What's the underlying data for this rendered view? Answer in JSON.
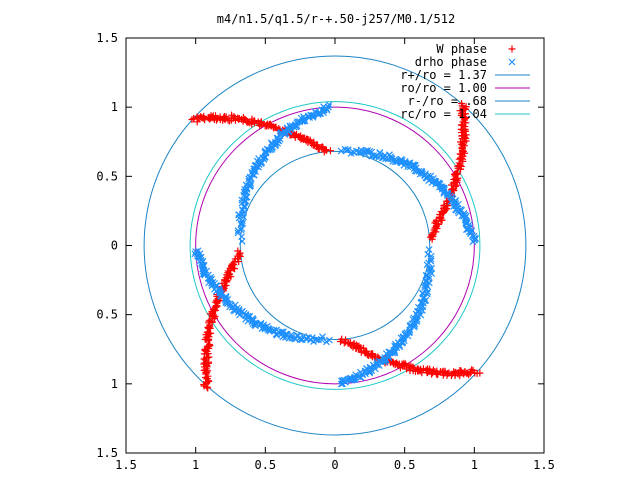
{
  "chart_data": {
    "type": "scatter",
    "title": "m4/n1.5/q1.5/r-+.50-j257/M0.1/512",
    "xlabel": "",
    "ylabel": "",
    "xlim": [
      -1.5,
      1.5
    ],
    "ylim": [
      -1.5,
      1.5
    ],
    "x_ticks": [
      "1.5",
      "1",
      "0.5",
      "0",
      "0.5",
      "1",
      "1.5"
    ],
    "y_ticks": [
      "1.5",
      "1",
      "0.5",
      "0",
      "0.5",
      "1",
      "1.5"
    ],
    "tick_values": [
      -1.5,
      -1,
      -0.5,
      0,
      0.5,
      1,
      1.5
    ],
    "grid": false,
    "legend_position": "top-right",
    "series": [
      {
        "name": "W phase",
        "marker": "+",
        "color": "#ff0000",
        "spiral": {
          "r_inner": 0.68,
          "r_outer": 1.37,
          "theta0_deg": 93,
          "sweep_deg": 45,
          "count": 150
        }
      },
      {
        "name": "drho phase",
        "marker": "x",
        "color": "#1e90ff",
        "spiral": {
          "r_inner": 0.68,
          "r_outer": 1.0,
          "theta0_deg": 87,
          "sweep_deg": -85,
          "count": 150
        }
      }
    ],
    "circles": [
      {
        "name": "r+/ro = 1.37",
        "radius": 1.37,
        "color": "#1b84c4"
      },
      {
        "name": "ro/ro = 1.00",
        "radius": 1.0,
        "color": "#b000b0"
      },
      {
        "name": "r-/ro = .68",
        "radius": 0.68,
        "color": "#1b84c4"
      },
      {
        "name": "rc/ro = 1.04",
        "radius": 1.04,
        "color": "#20c8c8"
      }
    ],
    "arms": 4
  }
}
